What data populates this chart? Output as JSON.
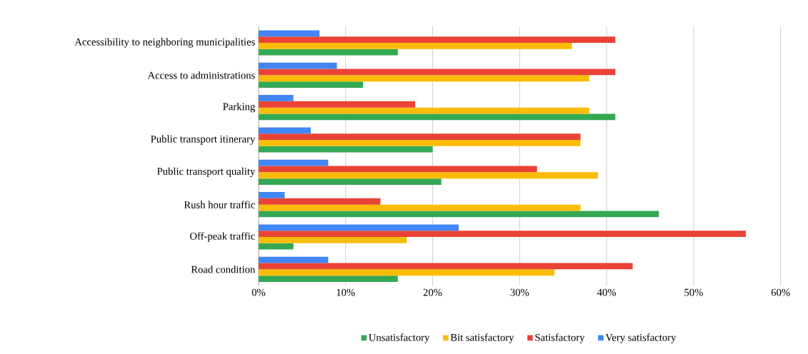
{
  "chart_data": {
    "type": "bar",
    "orientation": "horizontal",
    "categories": [
      "Accessibility to neighboring municipalities",
      "Access to administrations",
      "Parking",
      "Public transport itinerary",
      "Public transport quality",
      "Rush hour traffic",
      "Off-peak traffic",
      "Road condition"
    ],
    "series": [
      {
        "name": "Unsatisfactory",
        "color": "#34a853",
        "values": [
          16,
          12,
          41,
          20,
          21,
          46,
          4,
          16
        ]
      },
      {
        "name": "Bit satisfactory",
        "color": "#fbbc05",
        "values": [
          36,
          38,
          38,
          37,
          39,
          37,
          17,
          34
        ]
      },
      {
        "name": "Satisfactory",
        "color": "#ea4335",
        "values": [
          41,
          41,
          18,
          37,
          32,
          14,
          56,
          43
        ]
      },
      {
        "name": "Very satisfactory",
        "color": "#4285f4",
        "values": [
          7,
          9,
          4,
          6,
          8,
          3,
          23,
          8
        ]
      }
    ],
    "xlim": [
      0,
      60
    ],
    "xticks": [
      {
        "value": 0,
        "label": "0%"
      },
      {
        "value": 10,
        "label": "10%"
      },
      {
        "value": 20,
        "label": "20%"
      },
      {
        "value": 30,
        "label": "30%"
      },
      {
        "value": 40,
        "label": "40%"
      },
      {
        "value": 50,
        "label": "50%"
      },
      {
        "value": 60,
        "label": "60%"
      }
    ],
    "grid": "x",
    "legend": "bottom"
  }
}
